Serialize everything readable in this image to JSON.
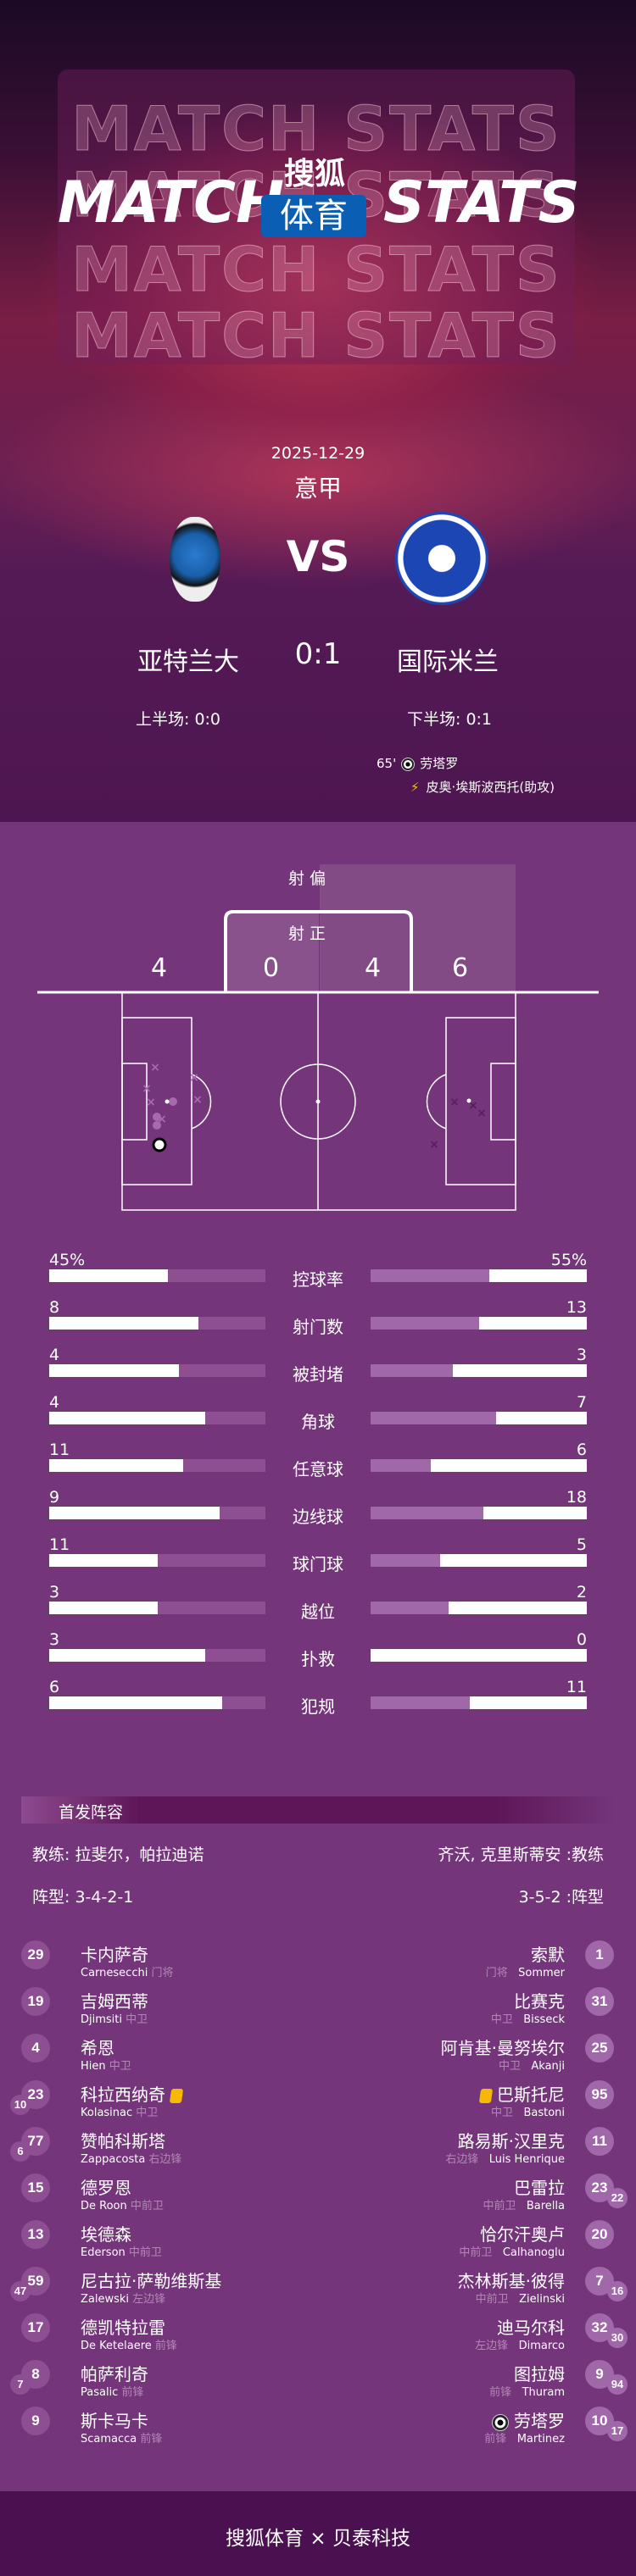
{
  "header": {
    "ghost_text": "MATCH STATS",
    "title_left": "MATCH",
    "title_right": "STATS",
    "brand_top": "搜狐",
    "brand_bottom": "体育"
  },
  "match": {
    "date": "2025-12-29",
    "league": "意甲",
    "vs": "VS",
    "home": "亚特兰大",
    "away": "国际米兰",
    "score": "0:1",
    "first_half": "上半场: 0:0",
    "second_half": "下半场: 0:1",
    "events": [
      {
        "minute": "65'",
        "icon": "goal-ball-icon",
        "player": "劳塔罗"
      },
      {
        "icon": "assist-boot-icon",
        "player": "皮奥·埃斯波西托(助攻)"
      }
    ]
  },
  "shots": {
    "off_target_label": "射 偏",
    "on_target_label": "射 正",
    "home_off": "4",
    "home_on": "0",
    "away_on": "4",
    "away_off": "6"
  },
  "stats": [
    {
      "label": "控球率",
      "home": "45%",
      "away": "55%",
      "home_fill": 0.55,
      "away_fill": 0.45
    },
    {
      "label": "射门数",
      "home": "8",
      "away": "13",
      "home_fill": 0.69,
      "away_fill": 0.5
    },
    {
      "label": "被封堵",
      "home": "4",
      "away": "3",
      "home_fill": 0.6,
      "away_fill": 0.62
    },
    {
      "label": "角球",
      "home": "4",
      "away": "7",
      "home_fill": 0.72,
      "away_fill": 0.42
    },
    {
      "label": "任意球",
      "home": "11",
      "away": "6",
      "home_fill": 0.62,
      "away_fill": 0.72
    },
    {
      "label": "边线球",
      "home": "9",
      "away": "18",
      "home_fill": 0.79,
      "away_fill": 0.48
    },
    {
      "label": "球门球",
      "home": "11",
      "away": "5",
      "home_fill": 0.5,
      "away_fill": 0.68
    },
    {
      "label": "越位",
      "home": "3",
      "away": "2",
      "home_fill": 0.5,
      "away_fill": 0.64
    },
    {
      "label": "扑救",
      "home": "3",
      "away": "0",
      "home_fill": 0.72,
      "away_fill": 1.0
    },
    {
      "label": "犯规",
      "home": "6",
      "away": "11",
      "home_fill": 0.8,
      "away_fill": 0.54
    }
  ],
  "lineup": {
    "title": "首发阵容",
    "home_coach": "教练: 拉斐尔，帕拉迪诺",
    "away_coach": "齐沃, 克里斯蒂安 :教练",
    "home_formation": "阵型: 3-4-2-1",
    "away_formation": "3-5-2 :阵型",
    "home": [
      {
        "no": "29",
        "cn": "卡内萨奇",
        "en": "Carnesecchi",
        "pos": "门将"
      },
      {
        "no": "19",
        "cn": "吉姆西蒂",
        "en": "Djimsiti",
        "pos": "中卫"
      },
      {
        "no": "4",
        "cn": "希恩",
        "en": "Hien",
        "pos": "中卫"
      },
      {
        "no": "23",
        "sub": "10",
        "cn": "科拉西纳奇",
        "en": "Kolasinac",
        "pos": "中卫",
        "yellow": true
      },
      {
        "no": "77",
        "sub": "6",
        "cn": "赞帕科斯塔",
        "en": "Zappacosta",
        "pos": "右边锋"
      },
      {
        "no": "15",
        "cn": "德罗恩",
        "en": "De Roon",
        "pos": "中前卫"
      },
      {
        "no": "13",
        "cn": "埃德森",
        "en": "Ederson",
        "pos": "中前卫"
      },
      {
        "no": "59",
        "sub": "47",
        "cn": "尼古拉·萨勒维斯基",
        "en": "Zalewski",
        "pos": "左边锋"
      },
      {
        "no": "17",
        "cn": "德凯特拉雷",
        "en": "De Ketelaere",
        "pos": "前锋"
      },
      {
        "no": "8",
        "sub": "7",
        "cn": "帕萨利奇",
        "en": "Pasalic",
        "pos": "前锋"
      },
      {
        "no": "9",
        "cn": "斯卡马卡",
        "en": "Scamacca",
        "pos": "前锋"
      }
    ],
    "away": [
      {
        "no": "1",
        "cn": "索默",
        "en": "Sommer",
        "pos": "门将"
      },
      {
        "no": "31",
        "cn": "比赛克",
        "en": "Bisseck",
        "pos": "中卫"
      },
      {
        "no": "25",
        "cn": "阿肯基·曼努埃尔",
        "en": "Akanji",
        "pos": "中卫"
      },
      {
        "no": "95",
        "cn": "巴斯托尼",
        "en": "Bastoni",
        "pos": "中卫",
        "yellow": true
      },
      {
        "no": "11",
        "cn": "路易斯·汉里克",
        "en": "Luis Henrique",
        "pos": "右边锋"
      },
      {
        "no": "23",
        "sub": "22",
        "cn": "巴雷拉",
        "en": "Barella",
        "pos": "中前卫"
      },
      {
        "no": "20",
        "cn": "恰尔汗奥卢",
        "en": "Calhanoglu",
        "pos": "中前卫"
      },
      {
        "no": "7",
        "sub": "16",
        "cn": "杰林斯基·彼得",
        "en": "Zielinski",
        "pos": "中前卫"
      },
      {
        "no": "32",
        "sub": "30",
        "cn": "迪马尔科",
        "en": "Dimarco",
        "pos": "左边锋"
      },
      {
        "no": "9",
        "sub": "94",
        "cn": "图拉姆",
        "en": "Thuram",
        "pos": "前锋"
      },
      {
        "no": "10",
        "sub": "17",
        "cn": "劳塔罗",
        "en": "Martinez",
        "pos": "前锋",
        "goal": true
      }
    ]
  },
  "footer": {
    "text": "搜狐体育 × 贝泰科技"
  },
  "colors": {
    "body": "#74357a",
    "header_bottom": "#4e1650",
    "footer": "#4a1050",
    "bar_home_track": "#8d4f92",
    "bar_away_track": "#a068a8",
    "brand_blue": "#0a5fb4",
    "yellow_card": "#f6b800"
  }
}
